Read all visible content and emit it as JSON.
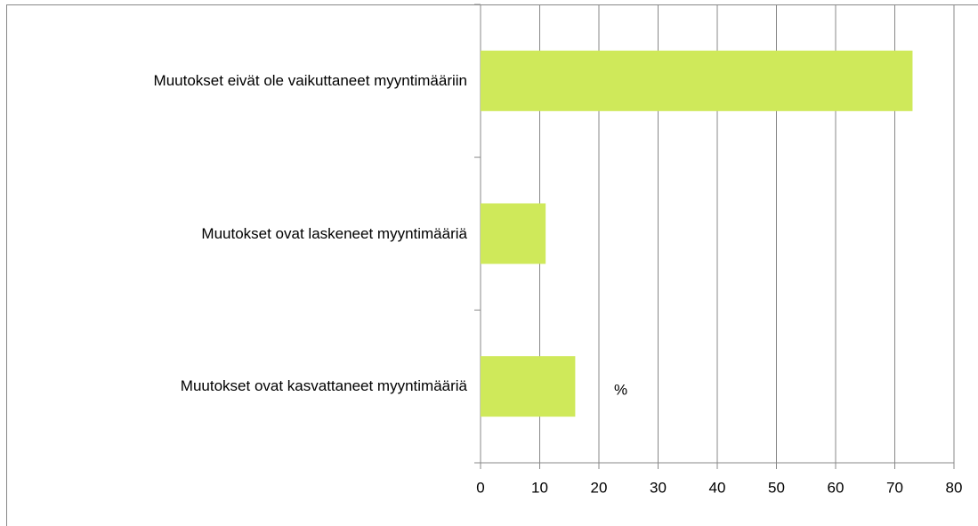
{
  "chart_data": {
    "type": "bar",
    "orientation": "horizontal",
    "categories": [
      "Muutokset eivät ole vaikuttaneet myyntimääriin",
      "Muutokset ovat laskeneet myyntimääriä",
      "Muutokset ovat kasvattaneet myyntimääriä"
    ],
    "series": [
      {
        "name": "%",
        "color": "#cfe95a",
        "values": [
          73,
          11,
          16
        ]
      }
    ],
    "xlim": [
      0,
      80
    ],
    "xticks": [
      0,
      10,
      20,
      30,
      40,
      50,
      60,
      70,
      80
    ],
    "grid": true
  }
}
